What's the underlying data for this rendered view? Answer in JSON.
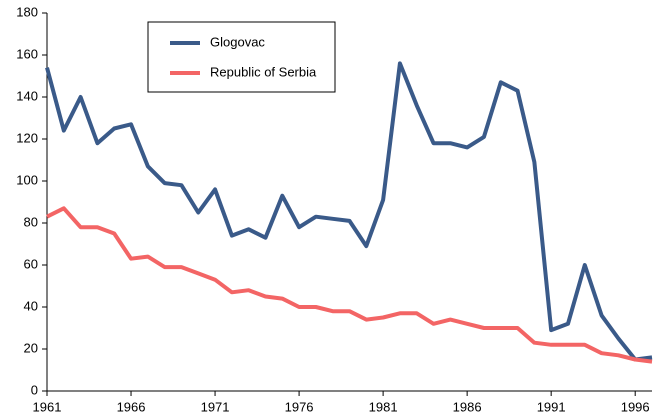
{
  "chart_data": {
    "type": "line",
    "x": [
      1961,
      1962,
      1963,
      1964,
      1965,
      1966,
      1967,
      1968,
      1969,
      1970,
      1971,
      1972,
      1973,
      1974,
      1975,
      1976,
      1977,
      1978,
      1979,
      1980,
      1981,
      1982,
      1983,
      1984,
      1985,
      1986,
      1987,
      1988,
      1989,
      1990,
      1991,
      1992,
      1993,
      1994,
      1995,
      1996,
      1997
    ],
    "series": [
      {
        "name": "Glogovac",
        "color": "#3a5a89",
        "values": [
          154,
          124,
          140,
          118,
          125,
          127,
          107,
          99,
          98,
          85,
          96,
          74,
          77,
          73,
          93,
          78,
          83,
          82,
          81,
          69,
          91,
          156,
          136,
          118,
          118,
          116,
          121,
          147,
          143,
          109,
          29,
          32,
          60,
          36,
          25,
          15,
          16
        ]
      },
      {
        "name": "Republic of Serbia",
        "color": "#f36565",
        "values": [
          83,
          87,
          78,
          78,
          75,
          63,
          64,
          59,
          59,
          56,
          53,
          47,
          48,
          45,
          44,
          40,
          40,
          38,
          38,
          34,
          35,
          37,
          37,
          32,
          34,
          32,
          30,
          30,
          30,
          23,
          22,
          22,
          22,
          18,
          17,
          15,
          14
        ]
      }
    ],
    "xlim": [
      1961,
      1997
    ],
    "xticks": [
      1961,
      1966,
      1971,
      1976,
      1981,
      1986,
      1991,
      1996
    ],
    "ylim": [
      0,
      180
    ],
    "yticks": [
      0,
      20,
      40,
      60,
      80,
      100,
      120,
      140,
      160,
      180
    ],
    "grid": false,
    "legend": "upper left"
  }
}
